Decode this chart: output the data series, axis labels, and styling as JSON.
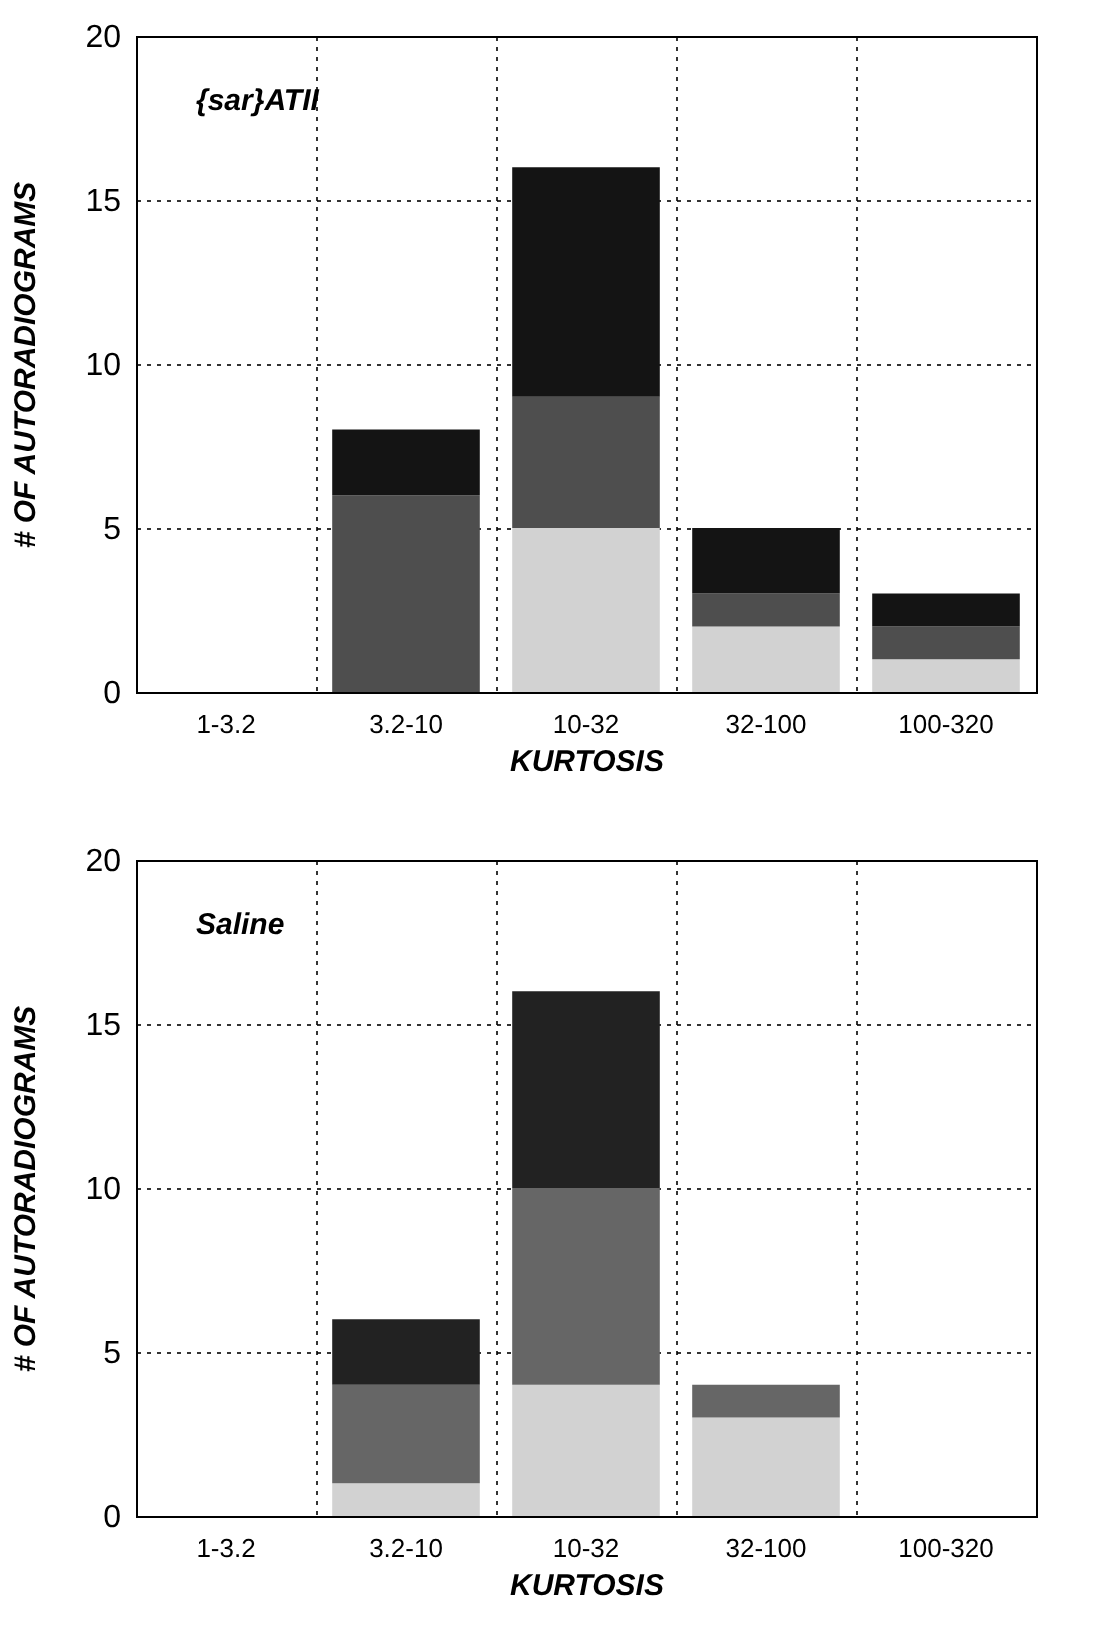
{
  "chart_data": [
    {
      "type": "bar",
      "title": "{sar}ATII",
      "xlabel": "KURTOSIS",
      "ylabel": "# OF AUTORADIOGRAMS",
      "categories": [
        "1-3.2",
        "3.2-10",
        "10-32",
        "32-100",
        "100-320"
      ],
      "stacked": true,
      "ylim": [
        0,
        20
      ],
      "yticks": [
        0,
        5,
        10,
        15,
        20
      ],
      "grid": true,
      "series": [
        {
          "color": "#d2d2d2",
          "values": [
            0,
            0,
            5,
            2,
            1
          ]
        },
        {
          "color": "#4e4e4e",
          "values": [
            0,
            6,
            4,
            1,
            1
          ]
        },
        {
          "color": "#141414",
          "values": [
            0,
            2,
            7,
            2,
            1
          ]
        }
      ]
    },
    {
      "type": "bar",
      "title": "Saline",
      "xlabel": "KURTOSIS",
      "ylabel": "# OF AUTORADIOGRAMS",
      "categories": [
        "1-3.2",
        "3.2-10",
        "10-32",
        "32-100",
        "100-320"
      ],
      "stacked": true,
      "ylim": [
        0,
        20
      ],
      "yticks": [
        0,
        5,
        10,
        15,
        20
      ],
      "grid": true,
      "series": [
        {
          "color": "#d2d2d2",
          "values": [
            0,
            1,
            4,
            3,
            0
          ]
        },
        {
          "color": "#666666",
          "values": [
            0,
            3,
            6,
            1,
            0
          ]
        },
        {
          "color": "#222222",
          "values": [
            0,
            2,
            6,
            0,
            0
          ]
        }
      ]
    }
  ]
}
